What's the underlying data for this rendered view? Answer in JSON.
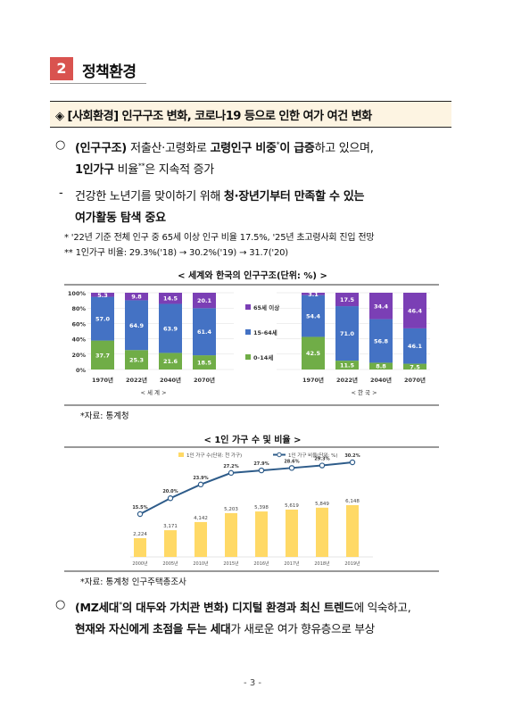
{
  "section": {
    "number": "2",
    "title": "정책환경"
  },
  "box_title": "◈ [사회환경] 인구구조 변화, 코로나19 등으로 인한 여가 여건 변화",
  "para1": {
    "bullet": "○",
    "l1_a": "(인구구조) ",
    "l1_b": "저출산·고령화로 ",
    "l1_c": "고령인구 비중",
    "l1_sup": "*",
    "l1_d": "이 급증",
    "l1_e": "하고 있으며,",
    "l2_a": "1인가구",
    "l2_b": " 비율",
    "l2_sup": "**",
    "l2_c": "은 지속적 증가"
  },
  "para2": {
    "dash": "-",
    "l1_a": "건강한 노년기를 맞이하기 위해 ",
    "l1_b": "청·장년기부터 만족할 수 있는",
    "l2": "여가활동 탐색 중요"
  },
  "notes": [
    "* '22년 기준 전체 인구 중 65세 이상 인구 비율 17.5%, '25년 초고령사회 진입 전망",
    "** 1인가구 비율: 29.3%('18) → 30.2%('19) → 31.7('20)"
  ],
  "chart1_caption": "< 세계와 한국의 인구구조(단위: %) >",
  "chart1_source": "*자료: 통계청",
  "chart2_caption": "< 1인 가구 수 및 비율 >",
  "chart2_source": "*자료: 통계청 인구주택총조사",
  "para3": {
    "bullet": "○",
    "l1_a": "(MZ세대",
    "l1_sup": "*",
    "l1_b": "의 대두와 가치관 변화) 디지털 환경과 최신 트렌드",
    "l1_c": "에 익숙하고,",
    "l2_a": "현재와 자신에게 초점을 두는 세대",
    "l2_b": "가 새로운 여가 향유층으로 부상"
  },
  "page_number": "- 3 -",
  "colors": {
    "old": "#7b3fb5",
    "mid": "#4472c4",
    "young": "#70ad47",
    "bar2": "#ffd966",
    "line2": "#2e5c8a",
    "section": "#d9534f"
  },
  "chart_data": [
    {
      "type": "bar",
      "stacked": true,
      "title": "세계와 한국의 인구구조(단위: %)",
      "ylim": [
        0,
        100
      ],
      "yticks": [
        "0%",
        "20%",
        "40%",
        "60%",
        "80%",
        "100%"
      ],
      "legend": [
        "65세 이상",
        "15-64세",
        "0-14세"
      ],
      "groups": [
        {
          "label": "< 세 계 >",
          "categories": [
            "1970년",
            "2022년",
            "2040년",
            "2070년"
          ],
          "series": [
            {
              "name": "0-14세",
              "values": [
                37.7,
                25.3,
                21.6,
                18.5
              ]
            },
            {
              "name": "15-64세",
              "values": [
                57.0,
                64.9,
                63.9,
                61.4
              ]
            },
            {
              "name": "65세 이상",
              "values": [
                5.3,
                9.8,
                14.5,
                20.1
              ]
            }
          ]
        },
        {
          "label": "< 한 국 >",
          "categories": [
            "1970년",
            "2022년",
            "2040년",
            "2070년"
          ],
          "series": [
            {
              "name": "0-14세",
              "values": [
                42.5,
                11.5,
                8.8,
                7.5
              ]
            },
            {
              "name": "15-64세",
              "values": [
                54.4,
                71.0,
                56.8,
                46.1
              ]
            },
            {
              "name": "65세 이상",
              "values": [
                3.1,
                17.5,
                34.4,
                46.4
              ]
            }
          ]
        }
      ]
    },
    {
      "type": "bar",
      "title": "1인 가구 수 및 비율",
      "legend": [
        "1인 가구 수(단위: 천 가구)",
        "1인 가구 비율(단위: %)"
      ],
      "categories": [
        "2000년",
        "2005년",
        "2010년",
        "2015년",
        "2016년",
        "2017년",
        "2018년",
        "2019년"
      ],
      "series": [
        {
          "name": "1인 가구 수(단위: 천 가구)",
          "type": "bar",
          "values": [
            2224,
            3171,
            4142,
            5203,
            5398,
            5619,
            5849,
            6148
          ],
          "labels": [
            "2,224",
            "3,171",
            "4,142",
            "5,203",
            "5,398",
            "5,619",
            "5,849",
            "6,148"
          ]
        },
        {
          "name": "1인 가구 비율(단위: %)",
          "type": "line",
          "values": [
            15.5,
            20.0,
            23.9,
            27.2,
            27.9,
            28.6,
            29.3,
            30.2
          ],
          "labels": [
            "15.5%",
            "20.0%",
            "23.9%",
            "27.2%",
            "27.9%",
            "28.6%",
            "29.3%",
            "30.2%"
          ]
        }
      ]
    }
  ]
}
